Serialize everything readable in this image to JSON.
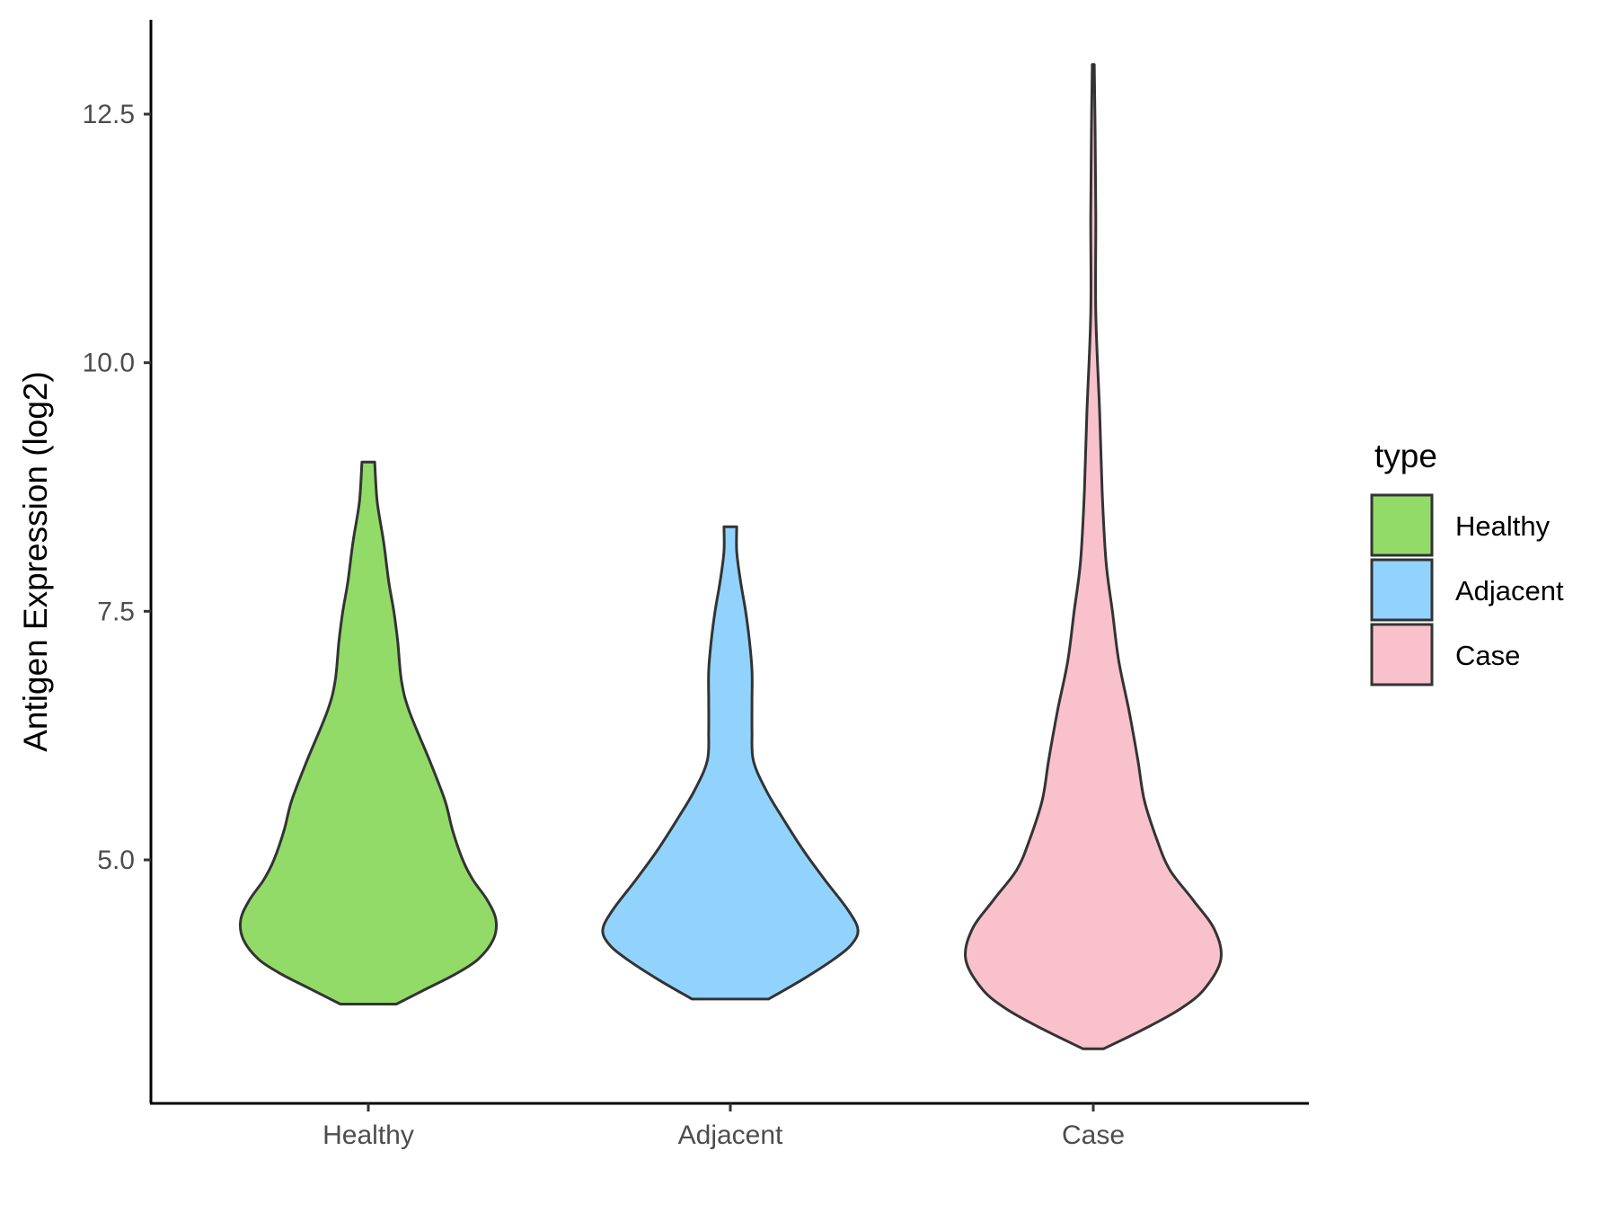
{
  "chart_data": {
    "type": "violin",
    "title": "",
    "xlabel": "",
    "ylabel": "Antigen Expression (log2)",
    "ylim": [
      2.3,
      13.5
    ],
    "yticks": [
      "5.0",
      "7.5",
      "10.0",
      "12.5"
    ],
    "categories": [
      "Healthy",
      "Adjacent",
      "Case"
    ],
    "grid": false,
    "legend": {
      "title": "type",
      "placement": "right",
      "entries": [
        "Healthy",
        "Adjacent",
        "Case"
      ]
    },
    "series": [
      {
        "category": "Healthy",
        "color": "#93DB69",
        "min": 3.55,
        "max": 9.0,
        "density": [
          [
            3.55,
            0.22
          ],
          [
            3.7,
            0.45
          ],
          [
            3.85,
            0.68
          ],
          [
            4.0,
            0.86
          ],
          [
            4.2,
            0.98
          ],
          [
            4.4,
            1.0
          ],
          [
            4.6,
            0.93
          ],
          [
            4.8,
            0.82
          ],
          [
            5.0,
            0.74
          ],
          [
            5.3,
            0.66
          ],
          [
            5.6,
            0.6
          ],
          [
            6.0,
            0.48
          ],
          [
            6.5,
            0.32
          ],
          [
            6.8,
            0.26
          ],
          [
            7.2,
            0.23
          ],
          [
            7.5,
            0.2
          ],
          [
            7.8,
            0.16
          ],
          [
            8.2,
            0.12
          ],
          [
            8.6,
            0.07
          ],
          [
            9.0,
            0.05
          ]
        ]
      },
      {
        "category": "Adjacent",
        "color": "#92D3FD",
        "min": 3.6,
        "max": 8.35,
        "density": [
          [
            3.6,
            0.3
          ],
          [
            3.8,
            0.57
          ],
          [
            4.0,
            0.81
          ],
          [
            4.15,
            0.95
          ],
          [
            4.3,
            1.0
          ],
          [
            4.5,
            0.92
          ],
          [
            4.8,
            0.74
          ],
          [
            5.1,
            0.57
          ],
          [
            5.4,
            0.42
          ],
          [
            5.7,
            0.28
          ],
          [
            6.0,
            0.18
          ],
          [
            6.3,
            0.17
          ],
          [
            6.6,
            0.17
          ],
          [
            6.9,
            0.17
          ],
          [
            7.2,
            0.15
          ],
          [
            7.5,
            0.12
          ],
          [
            7.8,
            0.08
          ],
          [
            8.1,
            0.05
          ],
          [
            8.35,
            0.05
          ]
        ]
      },
      {
        "category": "Case",
        "color": "#F8C1CC",
        "min": 3.1,
        "max": 13.0,
        "density": [
          [
            3.1,
            0.08
          ],
          [
            3.3,
            0.4
          ],
          [
            3.5,
            0.68
          ],
          [
            3.7,
            0.87
          ],
          [
            4.0,
            1.0
          ],
          [
            4.3,
            0.95
          ],
          [
            4.6,
            0.78
          ],
          [
            4.9,
            0.6
          ],
          [
            5.2,
            0.5
          ],
          [
            5.6,
            0.4
          ],
          [
            6.0,
            0.35
          ],
          [
            6.5,
            0.28
          ],
          [
            7.0,
            0.2
          ],
          [
            7.5,
            0.15
          ],
          [
            8.0,
            0.1
          ],
          [
            8.7,
            0.07
          ],
          [
            9.5,
            0.05
          ],
          [
            10.5,
            0.02
          ],
          [
            11.5,
            0.02
          ],
          [
            12.3,
            0.015
          ],
          [
            13.0,
            0.008
          ]
        ]
      }
    ]
  }
}
